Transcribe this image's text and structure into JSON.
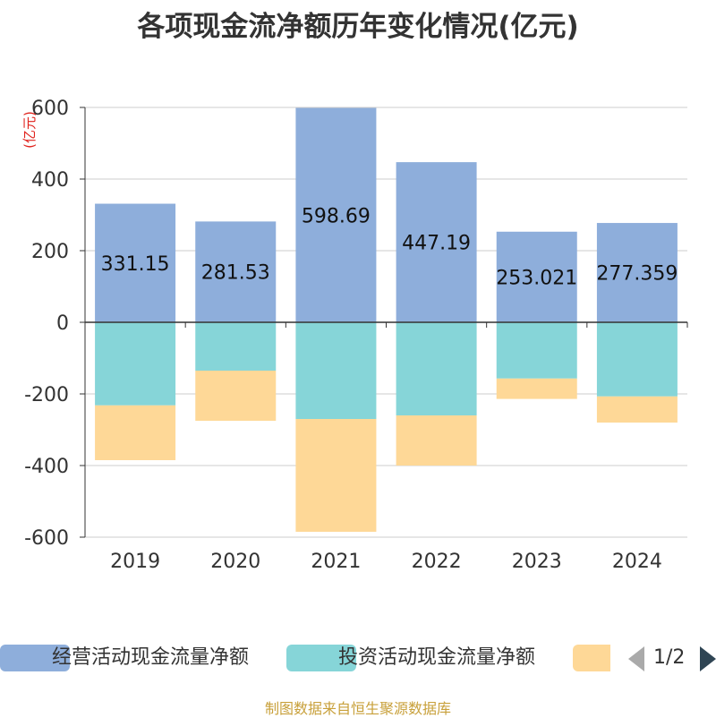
{
  "chart_data": {
    "type": "bar",
    "stacked": true,
    "title": "各项现金流净额历年变化情况(亿元)",
    "ylabel": "(亿元)",
    "categories": [
      "2019",
      "2020",
      "2021",
      "2022",
      "2023",
      "2024"
    ],
    "ylim": [
      -600,
      600
    ],
    "yticks": [
      -600,
      -400,
      -200,
      0,
      200,
      400,
      600
    ],
    "series": [
      {
        "name": "经营活动现金流量净额",
        "color": "#8eaedb",
        "values": [
          331.15,
          281.53,
          598.69,
          447.19,
          253.021,
          277.359
        ],
        "labels": [
          "331.15",
          "281.53",
          "598.69",
          "447.19",
          "253.021",
          "277.359"
        ]
      },
      {
        "name": "投资活动现金流量净额",
        "color": "#86d5d8",
        "values": [
          -232,
          -135,
          -270,
          -260,
          -157,
          -207
        ]
      },
      {
        "name": "",
        "color": "#fed897",
        "values": [
          -153,
          -140,
          -315,
          -140,
          -57,
          -73
        ]
      }
    ]
  },
  "legend": {
    "items": [
      {
        "label": "经营活动现金流量净额",
        "color": "#8eaedb"
      },
      {
        "label": "投资活动现金流量净额",
        "color": "#86d5d8"
      },
      {
        "label": "",
        "color": "#fed897"
      }
    ],
    "page": "1/2"
  },
  "source": "制图数据来自恒生聚源数据库"
}
